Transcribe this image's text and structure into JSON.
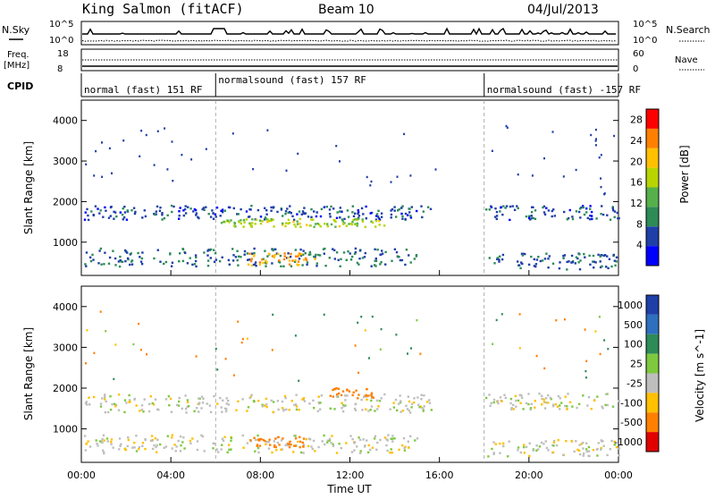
{
  "header": {
    "station": "King Salmon (fitACF)",
    "beam": "Beam 10",
    "date": "04/Jul/2013"
  },
  "strip_labels": {
    "nsky": "N.Sky",
    "nsearch": "N.Search",
    "freq_line1": "Freq.",
    "freq_line2": "[MHz]",
    "nave": "Nave",
    "cpid": "CPID",
    "exp_ticks_left": [
      "10^5",
      "10^0"
    ],
    "exp_ticks_right": [
      "10^5",
      "10^0"
    ],
    "freq_ticks": [
      "18",
      "8"
    ],
    "nave_ticks": [
      "60",
      "0"
    ]
  },
  "cpid_segments": [
    {
      "label": "normal (fast) 151 RF",
      "start_hour": 0,
      "end_hour": 6
    },
    {
      "label": "normalsound (fast) 157 RF",
      "start_hour": 6,
      "end_hour": 18
    },
    {
      "label": "normalsound (fast) -157 RF",
      "start_hour": 18,
      "end_hour": 24
    }
  ],
  "colors": {
    "power_scale": [
      "#0000ff",
      "#1f3fa8",
      "#2e8b57",
      "#56b04a",
      "#b8d400",
      "#ffc000",
      "#ff8000",
      "#ff0000"
    ],
    "velocity_scale": [
      "#1f3fa8",
      "#2e6fbe",
      "#2e8b57",
      "#7ec93f",
      "#bebebe",
      "#ffc000",
      "#ff8000",
      "#e00000"
    ],
    "ground_scatter": "#bebebe"
  },
  "chart_data": [
    {
      "type": "heatmap",
      "title": "",
      "xlabel": "Time UT",
      "ylabel": "Slant Range [km]",
      "x_range_hours": [
        0,
        24
      ],
      "y_range_km": [
        180,
        4500
      ],
      "x_ticks": [
        "00:00",
        "04:00",
        "08:00",
        "12:00",
        "16:00",
        "20:00",
        "00:00"
      ],
      "y_ticks": [
        1000,
        2000,
        3000,
        4000
      ],
      "colorbar": {
        "label": "Power [dB]",
        "ticks": [
          4,
          8,
          12,
          16,
          20,
          24,
          28
        ],
        "range": [
          0,
          30
        ]
      },
      "scatter_regions": [
        {
          "t_start": 0.1,
          "t_end": 15.6,
          "range_center_km": 1750,
          "range_width_km": 350,
          "power_db": 6
        },
        {
          "t_start": 6.2,
          "t_end": 13.5,
          "range_center_km": 1500,
          "range_width_km": 200,
          "power_db": 16
        },
        {
          "t_start": 0.1,
          "t_end": 15.0,
          "range_center_km": 650,
          "range_width_km": 450,
          "power_db": 8
        },
        {
          "t_start": 7.4,
          "t_end": 10.4,
          "range_center_km": 600,
          "range_width_km": 300,
          "power_db": 22
        },
        {
          "t_start": 18.0,
          "t_end": 24.0,
          "range_center_km": 1750,
          "range_width_km": 350,
          "power_db": 6
        },
        {
          "t_start": 18.0,
          "t_end": 24.0,
          "range_center_km": 550,
          "range_width_km": 400,
          "power_db": 7
        }
      ]
    },
    {
      "type": "heatmap",
      "title": "",
      "xlabel": "Time UT",
      "ylabel": "Slant Range [km]",
      "x_range_hours": [
        0,
        24
      ],
      "y_range_km": [
        180,
        4500
      ],
      "x_ticks": [
        "00:00",
        "04:00",
        "08:00",
        "12:00",
        "16:00",
        "20:00",
        "00:00"
      ],
      "y_ticks": [
        1000,
        2000,
        3000,
        4000
      ],
      "colorbar": {
        "label": "Velocity [m s^-1]",
        "ticks": [
          1000,
          500,
          100,
          25,
          -25,
          -100,
          -500,
          -1000
        ]
      },
      "scatter_regions": [
        {
          "t_start": 0.1,
          "t_end": 15.6,
          "range_center_km": 1650,
          "range_width_km": 450,
          "velocity_ms": 0
        },
        {
          "t_start": 0.1,
          "t_end": 15.0,
          "range_center_km": 650,
          "range_width_km": 450,
          "velocity_ms": 0
        },
        {
          "t_start": 11.0,
          "t_end": 13.0,
          "range_center_km": 1900,
          "range_width_km": 250,
          "velocity_ms": -200
        },
        {
          "t_start": 7.5,
          "t_end": 10.0,
          "range_center_km": 700,
          "range_width_km": 250,
          "velocity_ms": -150
        },
        {
          "t_start": 18.0,
          "t_end": 24.0,
          "range_center_km": 1700,
          "range_width_km": 400,
          "velocity_ms": 0
        },
        {
          "t_start": 18.0,
          "t_end": 24.0,
          "range_center_km": 550,
          "range_width_km": 400,
          "velocity_ms": 0
        }
      ]
    }
  ]
}
